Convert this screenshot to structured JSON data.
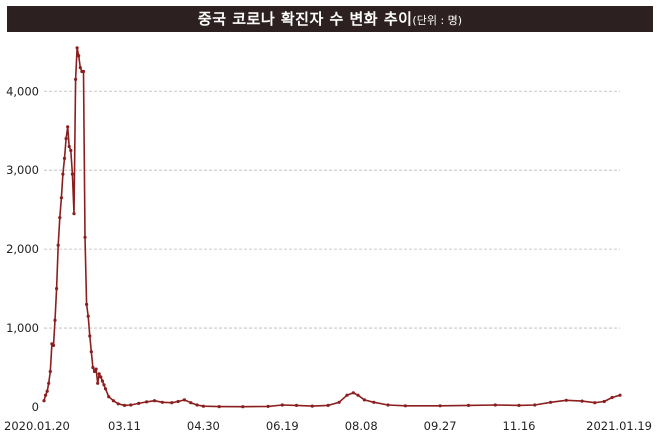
{
  "header": {
    "title": "중국 코로나 확진자 수 변화 추이",
    "unit": "(단위 : 명)"
  },
  "colors": {
    "title_background": "#2d2020",
    "line": "#8b1f1f",
    "grid": "#b9b9b9"
  },
  "chart_data": {
    "type": "line",
    "title": "중국 코로나 확진자 수 변화 추이",
    "unit": "(단위 : 명)",
    "xlabel": "",
    "ylabel": "",
    "x_ticks": [
      "2020.01.20",
      "03.11",
      "04.30",
      "06.19",
      "08.08",
      "09.27",
      "11.16",
      "2021.01.19"
    ],
    "x_tick_dates": [
      "2020-01-20",
      "2020-03-11",
      "2020-04-30",
      "2020-06-19",
      "2020-08-08",
      "2020-09-27",
      "2020-11-16",
      "2021-01-19"
    ],
    "y_ticks": [
      0,
      1000,
      2000,
      3000,
      4000
    ],
    "y_tick_labels": [
      "0",
      "1,000",
      "2,000",
      "3,000",
      "4,000"
    ],
    "xlim": [
      "2020-01-20",
      "2021-01-19"
    ],
    "ylim": [
      0,
      4700
    ],
    "grid": "horizontal",
    "legend": "none",
    "series": [
      {
        "points": [
          [
            "2020-01-20",
            80
          ],
          [
            "2020-01-21",
            150
          ],
          [
            "2020-01-22",
            200
          ],
          [
            "2020-01-23",
            300
          ],
          [
            "2020-01-24",
            450
          ],
          [
            "2020-01-25",
            800
          ],
          [
            "2020-01-26",
            780
          ],
          [
            "2020-01-27",
            1100
          ],
          [
            "2020-01-28",
            1500
          ],
          [
            "2020-01-29",
            2050
          ],
          [
            "2020-01-30",
            2400
          ],
          [
            "2020-01-31",
            2650
          ],
          [
            "2020-02-01",
            2950
          ],
          [
            "2020-02-02",
            3150
          ],
          [
            "2020-02-03",
            3400
          ],
          [
            "2020-02-04",
            3550
          ],
          [
            "2020-02-05",
            3300
          ],
          [
            "2020-02-06",
            3250
          ],
          [
            "2020-02-07",
            2950
          ],
          [
            "2020-02-08",
            2450
          ],
          [
            "2020-02-09",
            4150
          ],
          [
            "2020-02-10",
            4550
          ],
          [
            "2020-02-11",
            4450
          ],
          [
            "2020-02-12",
            4300
          ],
          [
            "2020-02-13",
            4250
          ],
          [
            "2020-02-14",
            4250
          ],
          [
            "2020-02-15",
            2150
          ],
          [
            "2020-02-16",
            1300
          ],
          [
            "2020-02-17",
            1150
          ],
          [
            "2020-02-18",
            900
          ],
          [
            "2020-02-19",
            700
          ],
          [
            "2020-02-20",
            500
          ],
          [
            "2020-02-21",
            450
          ],
          [
            "2020-02-22",
            480
          ],
          [
            "2020-02-23",
            300
          ],
          [
            "2020-02-24",
            420
          ],
          [
            "2020-02-25",
            380
          ],
          [
            "2020-02-26",
            330
          ],
          [
            "2020-02-27",
            280
          ],
          [
            "2020-02-28",
            230
          ],
          [
            "2020-03-01",
            130
          ],
          [
            "2020-03-04",
            80
          ],
          [
            "2020-03-07",
            40
          ],
          [
            "2020-03-11",
            20
          ],
          [
            "2020-03-15",
            25
          ],
          [
            "2020-03-20",
            45
          ],
          [
            "2020-03-25",
            65
          ],
          [
            "2020-03-30",
            80
          ],
          [
            "2020-04-04",
            60
          ],
          [
            "2020-04-10",
            55
          ],
          [
            "2020-04-14",
            70
          ],
          [
            "2020-04-18",
            90
          ],
          [
            "2020-04-22",
            55
          ],
          [
            "2020-04-26",
            25
          ],
          [
            "2020-04-30",
            10
          ],
          [
            "2020-05-10",
            5
          ],
          [
            "2020-05-25",
            4
          ],
          [
            "2020-06-10",
            8
          ],
          [
            "2020-06-19",
            25
          ],
          [
            "2020-06-28",
            20
          ],
          [
            "2020-07-08",
            12
          ],
          [
            "2020-07-18",
            20
          ],
          [
            "2020-07-25",
            60
          ],
          [
            "2020-07-30",
            150
          ],
          [
            "2020-08-03",
            180
          ],
          [
            "2020-08-06",
            150
          ],
          [
            "2020-08-10",
            90
          ],
          [
            "2020-08-16",
            60
          ],
          [
            "2020-08-25",
            25
          ],
          [
            "2020-09-05",
            15
          ],
          [
            "2020-09-27",
            15
          ],
          [
            "2020-10-15",
            20
          ],
          [
            "2020-11-01",
            25
          ],
          [
            "2020-11-16",
            20
          ],
          [
            "2020-11-26",
            25
          ],
          [
            "2020-12-06",
            60
          ],
          [
            "2020-12-16",
            85
          ],
          [
            "2020-12-26",
            75
          ],
          [
            "2021-01-03",
            55
          ],
          [
            "2021-01-09",
            70
          ],
          [
            "2021-01-14",
            120
          ],
          [
            "2021-01-19",
            150
          ]
        ]
      }
    ]
  }
}
